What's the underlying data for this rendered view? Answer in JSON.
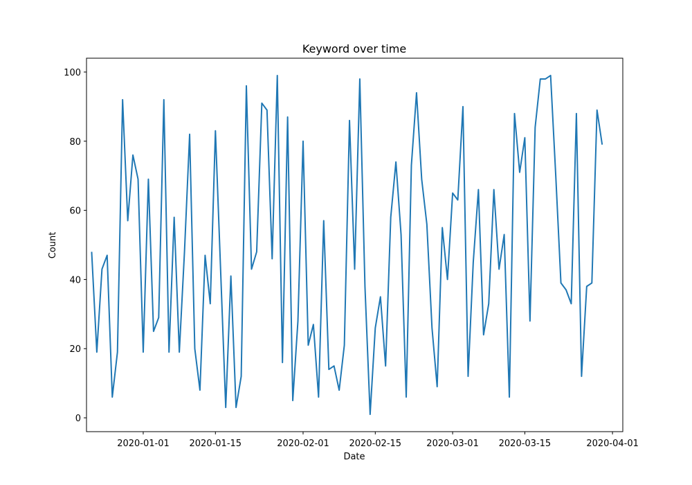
{
  "chart_data": {
    "type": "line",
    "title": "Keyword over time",
    "xlabel": "Date",
    "ylabel": "Count",
    "xlim": [
      "2019-12-21",
      "2020-04-03"
    ],
    "ylim": [
      -4,
      104
    ],
    "grid": false,
    "x_ticks": [
      "2020-01-01",
      "2020-01-15",
      "2020-02-01",
      "2020-02-15",
      "2020-03-01",
      "2020-03-15",
      "2020-04-01"
    ],
    "y_ticks": [
      "0",
      "20",
      "40",
      "60",
      "80",
      "100"
    ],
    "series": [
      {
        "color": "#1f77b4",
        "x": [
          "2019-12-22",
          "2019-12-23",
          "2019-12-24",
          "2019-12-25",
          "2019-12-26",
          "2019-12-27",
          "2019-12-28",
          "2019-12-29",
          "2019-12-30",
          "2019-12-31",
          "2020-01-01",
          "2020-01-02",
          "2020-01-03",
          "2020-01-04",
          "2020-01-05",
          "2020-01-06",
          "2020-01-07",
          "2020-01-08",
          "2020-01-09",
          "2020-01-10",
          "2020-01-11",
          "2020-01-12",
          "2020-01-13",
          "2020-01-14",
          "2020-01-15",
          "2020-01-16",
          "2020-01-17",
          "2020-01-18",
          "2020-01-19",
          "2020-01-20",
          "2020-01-21",
          "2020-01-22",
          "2020-01-23",
          "2020-01-24",
          "2020-01-25",
          "2020-01-26",
          "2020-01-27",
          "2020-01-28",
          "2020-01-29",
          "2020-01-30",
          "2020-01-31",
          "2020-02-01",
          "2020-02-02",
          "2020-02-03",
          "2020-02-04",
          "2020-02-05",
          "2020-02-06",
          "2020-02-07",
          "2020-02-08",
          "2020-02-09",
          "2020-02-10",
          "2020-02-11",
          "2020-02-12",
          "2020-02-13",
          "2020-02-14",
          "2020-02-15",
          "2020-02-16",
          "2020-02-17",
          "2020-02-18",
          "2020-02-19",
          "2020-02-20",
          "2020-02-21",
          "2020-02-22",
          "2020-02-23",
          "2020-02-24",
          "2020-02-25",
          "2020-02-26",
          "2020-02-27",
          "2020-02-28",
          "2020-02-29",
          "2020-03-01",
          "2020-03-02",
          "2020-03-03",
          "2020-03-04",
          "2020-03-05",
          "2020-03-06",
          "2020-03-07",
          "2020-03-08",
          "2020-03-09",
          "2020-03-10",
          "2020-03-11",
          "2020-03-12",
          "2020-03-13",
          "2020-03-14",
          "2020-03-15",
          "2020-03-16",
          "2020-03-17",
          "2020-03-18",
          "2020-03-19",
          "2020-03-20",
          "2020-03-21",
          "2020-03-22",
          "2020-03-23",
          "2020-03-24",
          "2020-03-25",
          "2020-03-26",
          "2020-03-27",
          "2020-03-28",
          "2020-03-29",
          "2020-03-30"
        ],
        "values": [
          48,
          19,
          43,
          47,
          6,
          19,
          92,
          57,
          76,
          69,
          19,
          69,
          25,
          29,
          92,
          19,
          58,
          19,
          48,
          82,
          20,
          8,
          47,
          33,
          83,
          43,
          3,
          41,
          3,
          12,
          96,
          43,
          48,
          91,
          89,
          46,
          99,
          16,
          87,
          5,
          28,
          80,
          21,
          27,
          6,
          57,
          14,
          15,
          8,
          21,
          86,
          43,
          98,
          38,
          1,
          26,
          35,
          15,
          58,
          74,
          53,
          6,
          73,
          94,
          69,
          56,
          26,
          9,
          55,
          40,
          65,
          63,
          90,
          12,
          45,
          66,
          24,
          33,
          66,
          43,
          53,
          6,
          88,
          71,
          81,
          28,
          84,
          98,
          98,
          99,
          70,
          39,
          37,
          33,
          88,
          12,
          38,
          39,
          89,
          79
        ]
      }
    ]
  }
}
